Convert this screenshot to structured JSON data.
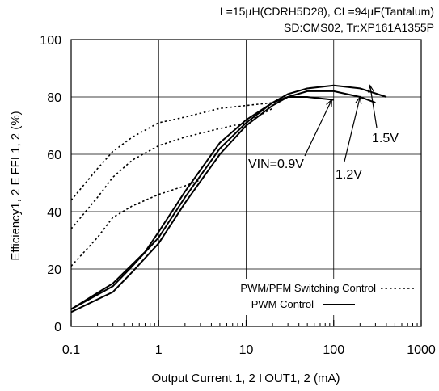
{
  "chart_data": {
    "type": "line",
    "title_lines": [
      "L=15µH(CDRH5D28), CL=94µF(Tantalum)",
      "SD:CMS02, Tr:XP161A1355P"
    ],
    "xlabel": "Output Current 1, 2 I OUT1, 2 (mA)",
    "ylabel": "Efficiency1, 2  E FFI 1, 2 (%)",
    "x_scale": "log",
    "xlim": [
      0.1,
      1000
    ],
    "ylim": [
      0,
      100
    ],
    "x_ticks": [
      0.1,
      1,
      10,
      100,
      1000
    ],
    "x_tick_labels": [
      "0.1",
      "1",
      "10",
      "100",
      "1000"
    ],
    "y_ticks": [
      0,
      20,
      40,
      60,
      80,
      100
    ],
    "y_tick_labels": [
      "0",
      "20",
      "40",
      "60",
      "80",
      "100"
    ],
    "grid": true,
    "legend": {
      "placement": "bottom-right",
      "entries": [
        {
          "label": "PWM/PFM Switching Control",
          "style": "dotted"
        },
        {
          "label": "PWM  Control",
          "style": "solid"
        }
      ]
    },
    "annotations": [
      {
        "text": "VIN=0.9V",
        "target_series": "0.9V",
        "arrow_to": [
          95,
          79
        ]
      },
      {
        "text": "1.2V",
        "target_series": "1.2V",
        "arrow_to": [
          200,
          80
        ]
      },
      {
        "text": "1.5V",
        "target_series": "1.5V",
        "arrow_to": [
          260,
          84
        ]
      }
    ],
    "series": [
      {
        "id": "0.9V",
        "style": "solid",
        "x": [
          0.1,
          0.3,
          0.5,
          1,
          2,
          5,
          10,
          20,
          30,
          50,
          100
        ],
        "y": [
          5,
          12,
          19,
          29,
          43,
          60,
          70,
          77,
          80,
          80,
          79
        ]
      },
      {
        "id": "1.2V",
        "style": "solid",
        "x": [
          0.1,
          0.3,
          0.5,
          1,
          2,
          5,
          10,
          20,
          30,
          50,
          100,
          200,
          300
        ],
        "y": [
          6,
          14,
          21,
          31,
          45,
          62,
          71,
          78,
          80,
          82,
          82,
          80,
          78
        ]
      },
      {
        "id": "1.5V",
        "style": "solid",
        "x": [
          0.1,
          0.3,
          0.7,
          1,
          2,
          5,
          10,
          20,
          30,
          50,
          100,
          200,
          400
        ],
        "y": [
          6,
          15,
          26,
          33,
          47,
          64,
          72,
          78,
          81,
          83,
          84,
          83,
          80
        ]
      },
      {
        "id": "0.9V",
        "style": "dotted",
        "x": [
          0.1,
          0.2,
          0.3,
          0.5,
          1,
          2,
          3
        ],
        "y": [
          21,
          31,
          38,
          42,
          46,
          49,
          51
        ]
      },
      {
        "id": "1.2V",
        "style": "dotted",
        "x": [
          0.1,
          0.2,
          0.3,
          0.5,
          1,
          2,
          5,
          10,
          20
        ],
        "y": [
          34,
          45,
          52,
          58,
          63,
          66,
          69,
          71,
          76
        ]
      },
      {
        "id": "1.5V",
        "style": "dotted",
        "x": [
          0.1,
          0.2,
          0.3,
          0.5,
          1,
          2,
          5,
          10,
          20
        ],
        "y": [
          44,
          55,
          61,
          66,
          71,
          73,
          76,
          77,
          78
        ]
      }
    ]
  }
}
